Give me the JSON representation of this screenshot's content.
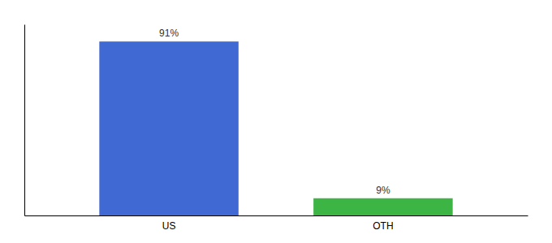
{
  "chart_data": {
    "type": "bar",
    "categories": [
      "US",
      "OTH"
    ],
    "values": [
      91,
      9
    ],
    "value_labels": [
      "91%",
      "9%"
    ],
    "data_labels": true,
    "colors": [
      "#4169d4",
      "#3cb544"
    ],
    "ylim": [
      0,
      100
    ],
    "tick_labels": "x"
  }
}
